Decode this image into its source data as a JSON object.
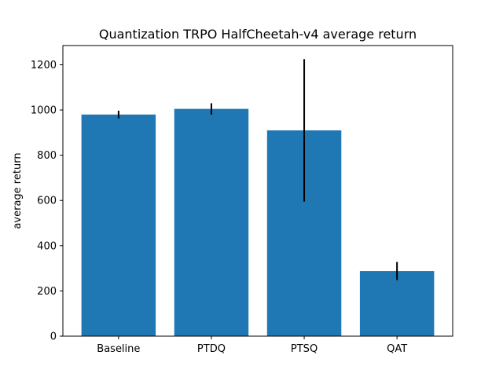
{
  "chart_data": {
    "type": "bar",
    "title": "Quantization TRPO HalfCheetah-v4 average return",
    "xlabel": "",
    "ylabel": "average return",
    "categories": [
      "Baseline",
      "PTDQ",
      "PTSQ",
      "QAT"
    ],
    "values": [
      980,
      1005,
      910,
      288
    ],
    "error": [
      17,
      25,
      315,
      40
    ],
    "ylim": [
      0,
      1285
    ],
    "yticks": [
      0,
      200,
      400,
      600,
      800,
      1000,
      1200
    ],
    "grid": false,
    "legend": "none",
    "bar_color": "#1f77b4",
    "error_color": "#000000"
  }
}
